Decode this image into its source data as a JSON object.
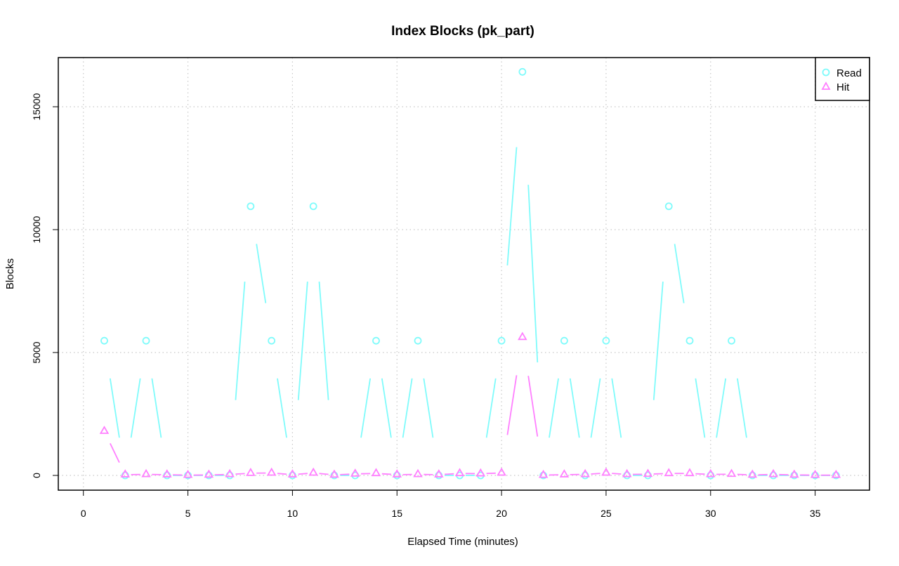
{
  "chart_data": {
    "type": "line",
    "title": "Index Blocks (pk_part)",
    "xlabel": "Elapsed Time (minutes)",
    "ylabel": "Blocks",
    "xlim": [
      -1.2,
      37.6
    ],
    "ylim": [
      -600,
      17000
    ],
    "xticks": [
      0,
      5,
      10,
      15,
      20,
      25,
      30,
      35
    ],
    "yticks": [
      0,
      5000,
      10000,
      15000
    ],
    "grid": true,
    "legend_position": "top-right",
    "x": [
      1,
      2,
      3,
      4,
      5,
      6,
      7,
      8,
      9,
      10,
      11,
      12,
      13,
      14,
      15,
      16,
      17,
      18,
      19,
      20,
      21,
      22,
      23,
      24,
      25,
      26,
      27,
      28,
      29,
      30,
      31,
      32,
      33,
      34,
      35,
      36
    ],
    "series": [
      {
        "name": "Read",
        "color": "#7ffbfb",
        "marker": "circle",
        "values": [
          5480,
          0,
          5480,
          0,
          0,
          0,
          0,
          10950,
          5480,
          0,
          10950,
          0,
          0,
          5480,
          0,
          5480,
          0,
          0,
          0,
          5480,
          16420,
          0,
          5480,
          0,
          5480,
          0,
          0,
          10950,
          5480,
          0,
          5480,
          0,
          0,
          0,
          0,
          0
        ]
      },
      {
        "name": "Hit",
        "color": "#ff7fff",
        "marker": "triangle",
        "values": [
          1800,
          30,
          40,
          30,
          10,
          20,
          40,
          90,
          100,
          30,
          100,
          20,
          60,
          80,
          30,
          40,
          30,
          80,
          70,
          100,
          5620,
          10,
          30,
          40,
          100,
          40,
          50,
          80,
          80,
          40,
          50,
          20,
          40,
          20,
          10,
          10
        ]
      }
    ]
  }
}
